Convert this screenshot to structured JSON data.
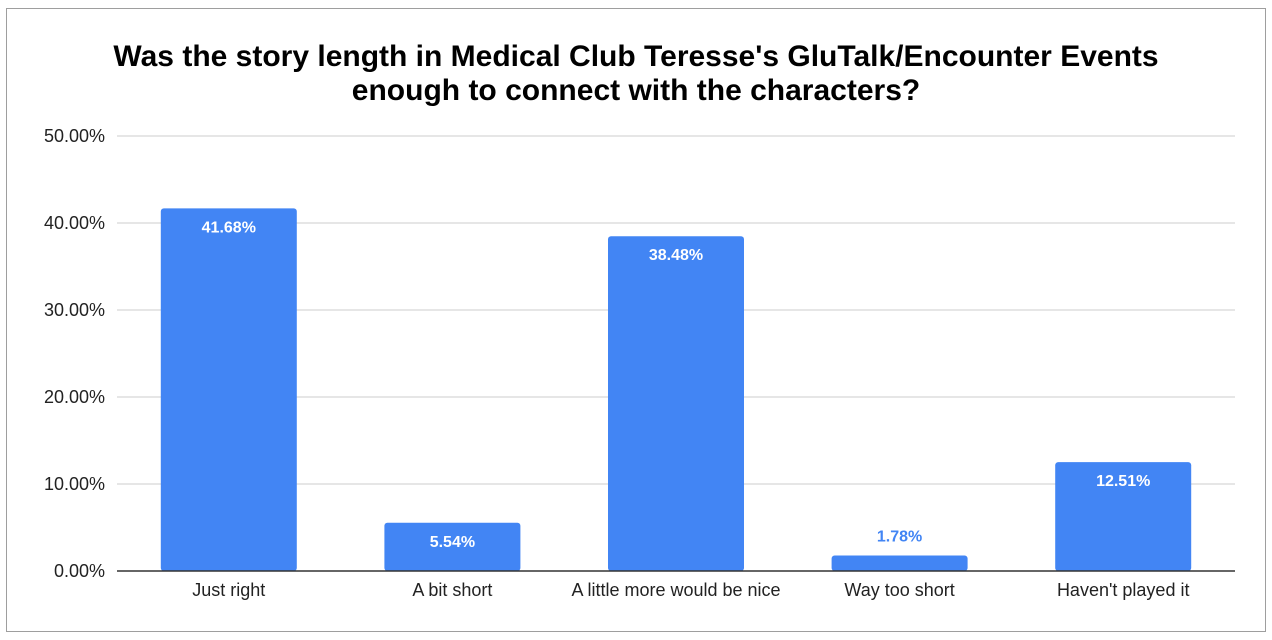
{
  "chart_data": {
    "type": "bar",
    "title_lines": [
      "Was the story length in Medical Club Teresse's GluTalk/Encounter Events",
      "enough to connect with the characters?"
    ],
    "xlabel": "",
    "ylabel": "",
    "categories": [
      "Just right",
      "A bit short",
      "A little more would be nice",
      "Way too short",
      "Haven't played it"
    ],
    "values": [
      41.68,
      5.54,
      38.48,
      1.78,
      12.51
    ],
    "data_labels": [
      "41.68%",
      "5.54%",
      "38.48%",
      "1.78%",
      "12.51%"
    ],
    "ylim": [
      0,
      50
    ],
    "yticks": [
      0,
      10,
      20,
      30,
      40,
      50
    ],
    "ytick_labels": [
      "0.00%",
      "10.00%",
      "20.00%",
      "30.00%",
      "40.00%",
      "50.00%"
    ],
    "grid": true,
    "legend": "none",
    "colors": {
      "bar": "#4285f4",
      "label_inside": "#ffffff",
      "label_outside": "#4285f4",
      "grid": "#cccccc",
      "axis": "#333333"
    }
  }
}
